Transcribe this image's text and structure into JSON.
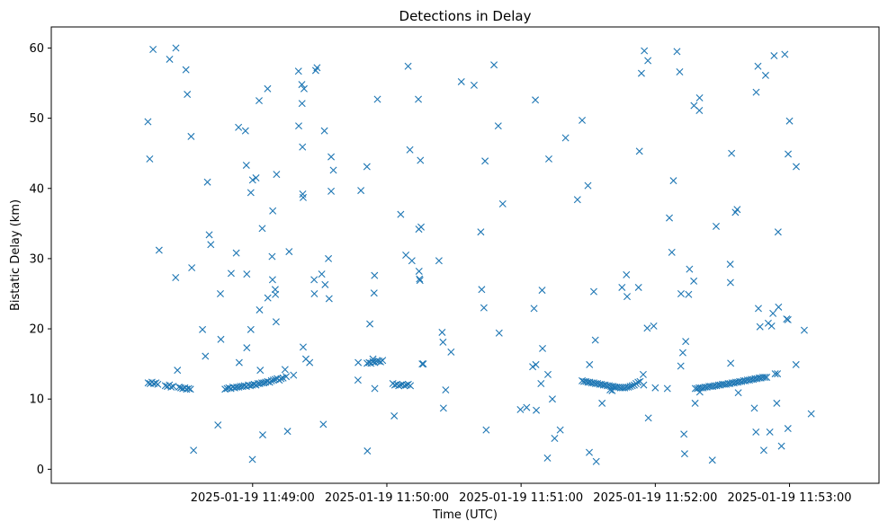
{
  "chart_data": {
    "type": "scatter",
    "title": "Detections in Delay",
    "xlabel": "Time (UTC)",
    "ylabel": "Bistatic Delay (km)",
    "marker": "x",
    "color": "#1f77b4",
    "grid": false,
    "legend": "none",
    "x_unit": "seconds after 11:48:00 UTC",
    "xlim": [
      -30,
      340
    ],
    "ylim": [
      -2,
      63
    ],
    "xticks": [
      {
        "value": 60,
        "label": "2025-01-19 11:49:00"
      },
      {
        "value": 120,
        "label": "2025-01-19 11:50:00"
      },
      {
        "value": 180,
        "label": "2025-01-19 11:51:00"
      },
      {
        "value": 240,
        "label": "2025-01-19 11:52:00"
      },
      {
        "value": 300,
        "label": "2025-01-19 11:53:00"
      }
    ],
    "yticks": [
      {
        "value": 0,
        "label": "0"
      },
      {
        "value": 10,
        "label": "10"
      },
      {
        "value": 20,
        "label": "20"
      },
      {
        "value": 30,
        "label": "30"
      },
      {
        "value": 40,
        "label": "40"
      },
      {
        "value": 50,
        "label": "50"
      },
      {
        "value": 60,
        "label": "60"
      }
    ],
    "points": [
      [
        13.3,
        12.3
      ],
      [
        14.2,
        12.2
      ],
      [
        15.0,
        12.4
      ],
      [
        15.9,
        12.2
      ],
      [
        16.8,
        12.3
      ],
      [
        17.6,
        12.1
      ],
      [
        21.0,
        11.9
      ],
      [
        21.9,
        11.8
      ],
      [
        22.8,
        12.0
      ],
      [
        23.6,
        11.7
      ],
      [
        24.5,
        11.8
      ],
      [
        27.1,
        11.7
      ],
      [
        27.9,
        11.6
      ],
      [
        28.8,
        11.5
      ],
      [
        29.7,
        11.6
      ],
      [
        30.5,
        11.4
      ],
      [
        31.4,
        11.5
      ],
      [
        32.2,
        11.4
      ],
      [
        47.7,
        11.4
      ],
      [
        48.6,
        11.5
      ],
      [
        49.4,
        11.6
      ],
      [
        50.3,
        11.5
      ],
      [
        51.2,
        11.7
      ],
      [
        52.0,
        11.6
      ],
      [
        52.9,
        11.7
      ],
      [
        53.8,
        11.7
      ],
      [
        54.6,
        11.8
      ],
      [
        55.5,
        11.8
      ],
      [
        56.3,
        11.9
      ],
      [
        57.2,
        11.8
      ],
      [
        58.1,
        12.0
      ],
      [
        58.9,
        11.9
      ],
      [
        59.8,
        12.0
      ],
      [
        60.7,
        12.1
      ],
      [
        61.5,
        12.0
      ],
      [
        62.4,
        12.2
      ],
      [
        63.2,
        12.2
      ],
      [
        64.1,
        12.3
      ],
      [
        65.0,
        12.3
      ],
      [
        65.8,
        12.4
      ],
      [
        66.7,
        12.5
      ],
      [
        67.6,
        12.4
      ],
      [
        68.4,
        12.6
      ],
      [
        69.3,
        12.7
      ],
      [
        70.1,
        12.8
      ],
      [
        71.0,
        12.9
      ],
      [
        71.9,
        12.7
      ],
      [
        72.7,
        12.9
      ],
      [
        73.6,
        13.0
      ],
      [
        111.2,
        15.1
      ],
      [
        112.1,
        15.2
      ],
      [
        112.9,
        15.1
      ],
      [
        113.8,
        15.3
      ],
      [
        114.6,
        15.2
      ],
      [
        115.5,
        15.4
      ],
      [
        116.4,
        15.4
      ],
      [
        117.2,
        15.3
      ],
      [
        118.1,
        15.5
      ],
      [
        122.7,
        12.2
      ],
      [
        123.6,
        12.0
      ],
      [
        124.5,
        12.1
      ],
      [
        125.3,
        11.9
      ],
      [
        126.2,
        12.0
      ],
      [
        127.0,
        12.1
      ],
      [
        127.9,
        11.9
      ],
      [
        128.8,
        12.0
      ],
      [
        129.6,
        12.1
      ],
      [
        130.5,
        11.9
      ],
      [
        207.3,
        12.6
      ],
      [
        208.1,
        12.5
      ],
      [
        209.0,
        12.5
      ],
      [
        209.9,
        12.4
      ],
      [
        210.7,
        12.4
      ],
      [
        211.6,
        12.3
      ],
      [
        212.5,
        12.3
      ],
      [
        213.3,
        12.2
      ],
      [
        214.2,
        12.2
      ],
      [
        215.1,
        12.1
      ],
      [
        215.9,
        12.1
      ],
      [
        216.8,
        12.0
      ],
      [
        217.6,
        12.0
      ],
      [
        218.5,
        11.9
      ],
      [
        219.4,
        11.9
      ],
      [
        220.2,
        11.8
      ],
      [
        221.1,
        11.8
      ],
      [
        222.0,
        11.7
      ],
      [
        222.8,
        11.7
      ],
      [
        223.7,
        11.7
      ],
      [
        224.5,
        11.6
      ],
      [
        225.4,
        11.6
      ],
      [
        226.3,
        11.6
      ],
      [
        227.1,
        11.7
      ],
      [
        228.0,
        11.7
      ],
      [
        228.8,
        11.8
      ],
      [
        229.7,
        11.9
      ],
      [
        230.6,
        12.0
      ],
      [
        231.4,
        12.2
      ],
      [
        232.3,
        12.4
      ],
      [
        233.2,
        12.5
      ],
      [
        257.9,
        11.5
      ],
      [
        258.8,
        11.5
      ],
      [
        259.6,
        11.6
      ],
      [
        260.5,
        11.6
      ],
      [
        261.4,
        11.6
      ],
      [
        262.2,
        11.7
      ],
      [
        263.1,
        11.7
      ],
      [
        264.0,
        11.8
      ],
      [
        264.8,
        11.8
      ],
      [
        265.7,
        11.8
      ],
      [
        266.5,
        11.9
      ],
      [
        267.4,
        11.9
      ],
      [
        268.3,
        12.0
      ],
      [
        269.1,
        12.0
      ],
      [
        270.0,
        12.1
      ],
      [
        270.8,
        12.1
      ],
      [
        271.7,
        12.1
      ],
      [
        272.6,
        12.2
      ],
      [
        273.4,
        12.2
      ],
      [
        274.3,
        12.3
      ],
      [
        275.2,
        12.3
      ],
      [
        276.0,
        12.4
      ],
      [
        276.9,
        12.4
      ],
      [
        277.7,
        12.5
      ],
      [
        278.6,
        12.5
      ],
      [
        279.5,
        12.6
      ],
      [
        280.3,
        12.6
      ],
      [
        281.2,
        12.7
      ],
      [
        282.1,
        12.7
      ],
      [
        282.9,
        12.8
      ],
      [
        283.8,
        12.8
      ],
      [
        284.6,
        12.9
      ],
      [
        285.5,
        12.9
      ],
      [
        286.4,
        13.0
      ],
      [
        287.2,
        13.0
      ],
      [
        288.1,
        13.1
      ],
      [
        289.0,
        13.1
      ],
      [
        289.8,
        13.1
      ],
      [
        13.2,
        49.5
      ],
      [
        14.0,
        44.2
      ],
      [
        15.5,
        59.8
      ],
      [
        18.2,
        31.2
      ],
      [
        22.9,
        58.4
      ],
      [
        25.6,
        27.3
      ],
      [
        25.7,
        60.0
      ],
      [
        26.4,
        14.1
      ],
      [
        30.2,
        56.9
      ],
      [
        30.8,
        53.4
      ],
      [
        32.5,
        47.4
      ],
      [
        32.8,
        28.7
      ],
      [
        33.6,
        2.7
      ],
      [
        37.6,
        19.9
      ],
      [
        38.9,
        16.1
      ],
      [
        39.8,
        40.9
      ],
      [
        40.6,
        33.4
      ],
      [
        41.3,
        32.0
      ],
      [
        44.5,
        6.3
      ],
      [
        45.6,
        25.0
      ],
      [
        45.8,
        18.5
      ],
      [
        50.4,
        27.9
      ],
      [
        52.7,
        30.8
      ],
      [
        53.7,
        48.7
      ],
      [
        54.0,
        15.2
      ],
      [
        56.8,
        48.2
      ],
      [
        57.2,
        43.3
      ],
      [
        57.4,
        17.3
      ],
      [
        57.4,
        27.8
      ],
      [
        59.2,
        19.9
      ],
      [
        59.2,
        39.4
      ],
      [
        59.9,
        1.4
      ],
      [
        60.0,
        41.2
      ],
      [
        61.5,
        41.5
      ],
      [
        62.9,
        52.5
      ],
      [
        63.1,
        22.7
      ],
      [
        63.4,
        14.1
      ],
      [
        64.3,
        34.3
      ],
      [
        64.5,
        4.9
      ],
      [
        66.7,
        54.2
      ],
      [
        66.8,
        24.4
      ],
      [
        68.7,
        30.3
      ],
      [
        68.9,
        27.0
      ],
      [
        69.0,
        36.8
      ],
      [
        70.1,
        25.6
      ],
      [
        70.2,
        24.9
      ],
      [
        70.5,
        21.0
      ],
      [
        70.7,
        42.0
      ],
      [
        74.5,
        14.2
      ],
      [
        75.0,
        13.2
      ],
      [
        75.6,
        5.4
      ],
      [
        76.3,
        31.0
      ],
      [
        78.3,
        13.4
      ],
      [
        80.5,
        56.7
      ],
      [
        80.6,
        48.9
      ],
      [
        82.0,
        54.8
      ],
      [
        82.1,
        52.1
      ],
      [
        82.3,
        45.9
      ],
      [
        82.4,
        39.2
      ],
      [
        82.6,
        38.7
      ],
      [
        82.6,
        17.4
      ],
      [
        83.0,
        54.2
      ],
      [
        83.8,
        15.7
      ],
      [
        85.5,
        15.2
      ],
      [
        87.5,
        27.0
      ],
      [
        87.6,
        25.0
      ],
      [
        88.2,
        56.8
      ],
      [
        88.8,
        57.2
      ],
      [
        90.9,
        27.8
      ],
      [
        91.6,
        6.4
      ],
      [
        92.1,
        48.2
      ],
      [
        92.4,
        26.3
      ],
      [
        93.9,
        30.0
      ],
      [
        94.2,
        24.3
      ],
      [
        95.1,
        39.6
      ],
      [
        95.1,
        44.5
      ],
      [
        96.1,
        42.6
      ],
      [
        107.1,
        12.7
      ],
      [
        107.2,
        15.2
      ],
      [
        108.4,
        39.7
      ],
      [
        111.1,
        43.1
      ],
      [
        111.3,
        2.6
      ],
      [
        112.4,
        20.7
      ],
      [
        113.8,
        15.7
      ],
      [
        114.3,
        25.1
      ],
      [
        114.5,
        27.6
      ],
      [
        114.6,
        11.5
      ],
      [
        115.8,
        52.7
      ],
      [
        123.3,
        7.6
      ],
      [
        126.2,
        36.3
      ],
      [
        128.5,
        30.5
      ],
      [
        129.5,
        57.4
      ],
      [
        130.3,
        45.5
      ],
      [
        131.2,
        29.7
      ],
      [
        134.1,
        52.7
      ],
      [
        134.3,
        34.2
      ],
      [
        134.4,
        28.2
      ],
      [
        134.6,
        27.1
      ],
      [
        134.8,
        26.9
      ],
      [
        135.0,
        44.0
      ],
      [
        135.3,
        34.5
      ],
      [
        135.8,
        15.0
      ],
      [
        136.3,
        15.0
      ],
      [
        143.3,
        29.7
      ],
      [
        144.7,
        19.5
      ],
      [
        145.1,
        18.1
      ],
      [
        145.3,
        8.7
      ],
      [
        146.3,
        11.3
      ],
      [
        148.7,
        16.7
      ],
      [
        153.3,
        55.2
      ],
      [
        159.0,
        54.7
      ],
      [
        162.0,
        33.8
      ],
      [
        162.4,
        25.6
      ],
      [
        163.4,
        23.0
      ],
      [
        163.9,
        43.9
      ],
      [
        164.4,
        5.6
      ],
      [
        167.9,
        57.6
      ],
      [
        169.8,
        48.9
      ],
      [
        170.2,
        19.4
      ],
      [
        171.8,
        37.8
      ],
      [
        179.7,
        8.5
      ],
      [
        182.5,
        8.8
      ],
      [
        185.2,
        14.6
      ],
      [
        185.8,
        22.9
      ],
      [
        186.4,
        52.6
      ],
      [
        186.6,
        14.9
      ],
      [
        186.8,
        8.4
      ],
      [
        188.9,
        12.2
      ],
      [
        189.4,
        25.5
      ],
      [
        189.6,
        17.2
      ],
      [
        191.8,
        1.6
      ],
      [
        192.0,
        13.5
      ],
      [
        192.4,
        44.2
      ],
      [
        194.0,
        10.0
      ],
      [
        195.0,
        4.4
      ],
      [
        197.5,
        5.6
      ],
      [
        199.9,
        47.2
      ],
      [
        205.2,
        38.4
      ],
      [
        207.3,
        49.7
      ],
      [
        209.9,
        40.4
      ],
      [
        210.5,
        2.4
      ],
      [
        210.6,
        14.9
      ],
      [
        212.5,
        25.3
      ],
      [
        213.2,
        18.4
      ],
      [
        213.6,
        1.1
      ],
      [
        216.2,
        9.4
      ],
      [
        219.8,
        11.3
      ],
      [
        220.7,
        11.2
      ],
      [
        221.8,
        11.7
      ],
      [
        225.1,
        25.9
      ],
      [
        227.1,
        27.7
      ],
      [
        227.4,
        24.6
      ],
      [
        232.5,
        25.9
      ],
      [
        232.9,
        45.3
      ],
      [
        233.8,
        56.4
      ],
      [
        234.6,
        13.5
      ],
      [
        234.8,
        12.0
      ],
      [
        235.1,
        59.6
      ],
      [
        236.4,
        20.1
      ],
      [
        236.7,
        58.2
      ],
      [
        236.9,
        7.3
      ],
      [
        239.3,
        20.4
      ],
      [
        240.0,
        11.6
      ],
      [
        245.4,
        11.5
      ],
      [
        246.3,
        35.8
      ],
      [
        247.4,
        30.9
      ],
      [
        248.1,
        41.1
      ],
      [
        249.7,
        59.5
      ],
      [
        250.9,
        56.6
      ],
      [
        251.4,
        14.7
      ],
      [
        251.5,
        25.0
      ],
      [
        252.3,
        16.6
      ],
      [
        252.8,
        5.0
      ],
      [
        253.1,
        2.2
      ],
      [
        253.6,
        18.2
      ],
      [
        254.9,
        24.9
      ],
      [
        255.3,
        28.5
      ],
      [
        257.2,
        26.8
      ],
      [
        257.3,
        51.8
      ],
      [
        257.8,
        9.4
      ],
      [
        259.7,
        51.1
      ],
      [
        259.8,
        52.9
      ],
      [
        259.9,
        11.0
      ],
      [
        265.5,
        1.3
      ],
      [
        267.2,
        34.6
      ],
      [
        273.5,
        29.2
      ],
      [
        273.6,
        26.6
      ],
      [
        273.7,
        15.1
      ],
      [
        274.1,
        45.0
      ],
      [
        275.8,
        36.6
      ],
      [
        276.6,
        37.0
      ],
      [
        277.1,
        10.9
      ],
      [
        284.3,
        8.7
      ],
      [
        285.0,
        5.3
      ],
      [
        285.1,
        53.7
      ],
      [
        285.9,
        57.4
      ],
      [
        286.1,
        22.9
      ],
      [
        286.8,
        20.3
      ],
      [
        288.5,
        2.7
      ],
      [
        289.3,
        56.1
      ],
      [
        290.5,
        20.8
      ],
      [
        291.2,
        5.3
      ],
      [
        292.0,
        20.4
      ],
      [
        292.6,
        22.2
      ],
      [
        293.1,
        58.9
      ],
      [
        293.6,
        13.6
      ],
      [
        294.3,
        9.4
      ],
      [
        294.6,
        13.6
      ],
      [
        294.9,
        33.8
      ],
      [
        295.1,
        23.1
      ],
      [
        296.4,
        3.3
      ],
      [
        297.9,
        59.1
      ],
      [
        298.7,
        21.4
      ],
      [
        299.3,
        21.3
      ],
      [
        299.3,
        5.8
      ],
      [
        299.4,
        44.9
      ],
      [
        300.0,
        49.6
      ],
      [
        303.0,
        43.1
      ],
      [
        302.9,
        14.9
      ],
      [
        306.6,
        19.8
      ],
      [
        309.7,
        7.9
      ]
    ]
  }
}
